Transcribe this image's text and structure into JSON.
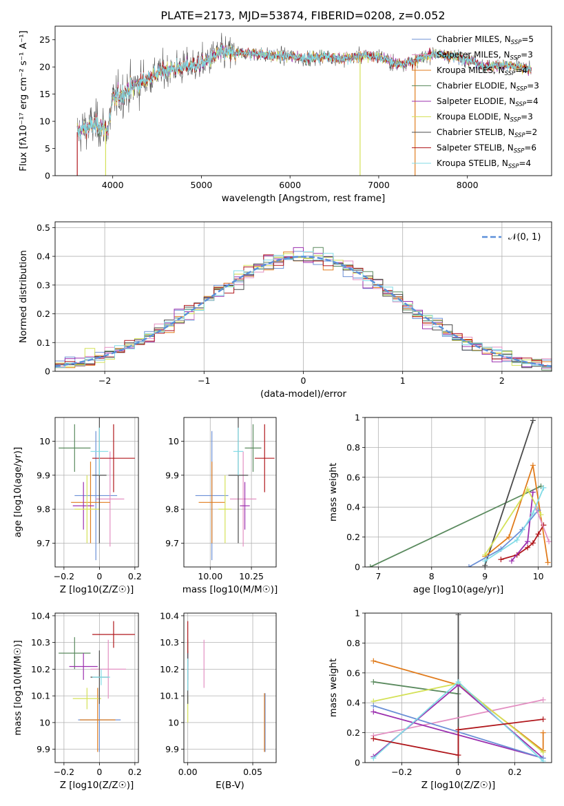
{
  "title": "PLATE=2173, MJD=53874, FIBERID=0208, z=0.052",
  "colors": {
    "Chabrier MILES": "#6a8fd6",
    "Salpeter MILES": "#e38fc2",
    "Kroupa MILES": "#e07b1c",
    "Chabrier ELODIE": "#5a8a5e",
    "Salpeter ELODIE": "#9b2fae",
    "Kroupa ELODIE": "#d4e157",
    "Chabrier STELIB": "#4a4a4a",
    "Salpeter STELIB": "#b0161b",
    "Kroupa STELIB": "#80dbe6"
  },
  "chart_data": [
    {
      "id": "spectrum",
      "type": "line",
      "title": "PLATE=2173, MJD=53874, FIBERID=0208, z=0.052",
      "xlabel": "wavelength [Angstrom, rest frame]",
      "ylabel": "Flux [fλ10⁻¹⁷ erg cm⁻² s⁻¹ A⁻¹]",
      "xlim": [
        3350,
        8950
      ],
      "ylim": [
        0,
        27.5
      ],
      "xticks": [
        4000,
        5000,
        6000,
        7000,
        8000
      ],
      "yticks": [
        0,
        5,
        10,
        15,
        20,
        25
      ],
      "grid": false,
      "legend_position": "top-right",
      "legend": [
        {
          "label": "Chabrier MILES, N",
          "sub": "SSP",
          "tail": "=5",
          "model": "Chabrier MILES"
        },
        {
          "label": "Salpeter MILES, N",
          "sub": "SSP",
          "tail": "=3",
          "model": "Salpeter MILES"
        },
        {
          "label": "Kroupa MILES, N",
          "sub": "SSP",
          "tail": "=4",
          "model": "Kroupa MILES"
        },
        {
          "label": "Chabrier ELODIE, N",
          "sub": "SSP",
          "tail": "=3",
          "model": "Chabrier ELODIE"
        },
        {
          "label": "Salpeter ELODIE, N",
          "sub": "SSP",
          "tail": "=4",
          "model": "Salpeter ELODIE"
        },
        {
          "label": "Kroupa ELODIE, N",
          "sub": "SSP",
          "tail": "=3",
          "model": "Kroupa ELODIE"
        },
        {
          "label": "Chabrier STELIB, N",
          "sub": "SSP",
          "tail": "=2",
          "model": "Chabrier STELIB"
        },
        {
          "label": "Salpeter STELIB, N",
          "sub": "SSP",
          "tail": "=6",
          "model": "Salpeter STELIB"
        },
        {
          "label": "Kroupa STELIB, N",
          "sub": "SSP",
          "tail": "=4",
          "model": "Kroupa STELIB"
        }
      ],
      "continuum": {
        "x": [
          3600,
          3800,
          3950,
          4000,
          4200,
          4400,
          4600,
          4800,
          5000,
          5200,
          5400,
          5600,
          5800,
          6000,
          6200,
          6400,
          6600,
          6800,
          7000,
          7200,
          7400,
          7600,
          7800,
          8000,
          8200,
          8400,
          8700
        ],
        "y": [
          8.0,
          9.5,
          8.5,
          14.0,
          16.0,
          18.0,
          19.5,
          20.0,
          20.5,
          22.5,
          22.5,
          22.5,
          22.0,
          22.0,
          21.5,
          22.0,
          21.5,
          22.0,
          22.0,
          20.5,
          21.0,
          22.5,
          22.0,
          21.5,
          20.0,
          20.5,
          19.5
        ]
      },
      "cutoffs": [
        {
          "model": "Salpeter STELIB",
          "x": 3600
        },
        {
          "model": "Kroupa ELODIE",
          "x": 3920
        },
        {
          "model": "Kroupa ELODIE",
          "x": 6790
        },
        {
          "model": "Kroupa MILES",
          "x": 7410
        }
      ]
    },
    {
      "id": "residuals",
      "type": "histogram",
      "xlabel": "(data-model)/error",
      "ylabel": "Normed distribution",
      "xlim": [
        -2.5,
        2.5
      ],
      "ylim": [
        0,
        0.52
      ],
      "xticks": [
        -2,
        -1,
        0,
        1,
        2
      ],
      "yticks": [
        0.0,
        0.1,
        0.2,
        0.3,
        0.4,
        0.5
      ],
      "grid": true,
      "legend_position": "top-right",
      "legend_label": "𝒩(0, 1)",
      "reference_curve": "standard normal",
      "bin_width": 0.1
    },
    {
      "id": "age_vs_z",
      "type": "errorbar",
      "xlabel": "Z [log10(Z/Z☉)]",
      "ylabel": "age [log10(age/yr)]",
      "xlim": [
        -0.25,
        0.22
      ],
      "ylim": [
        9.63,
        10.07
      ],
      "xticks": [
        -0.2,
        0.0,
        0.2
      ],
      "yticks": [
        9.7,
        9.8,
        9.9,
        10.0
      ],
      "grid": true,
      "points": [
        {
          "model": "Chabrier MILES",
          "x": -0.02,
          "xerr": 0.12,
          "y": 9.84,
          "yerr": 0.19
        },
        {
          "model": "Salpeter MILES",
          "x": 0.06,
          "xerr": 0.08,
          "y": 9.83,
          "yerr": 0.14
        },
        {
          "model": "Kroupa MILES",
          "x": -0.05,
          "xerr": 0.11,
          "y": 9.82,
          "yerr": 0.12
        },
        {
          "model": "Chabrier ELODIE",
          "x": -0.14,
          "xerr": 0.09,
          "y": 9.98,
          "yerr": 0.07
        },
        {
          "model": "Salpeter ELODIE",
          "x": -0.09,
          "xerr": 0.06,
          "y": 9.81,
          "yerr": 0.07
        },
        {
          "model": "Kroupa ELODIE",
          "x": -0.07,
          "xerr": 0.07,
          "y": 9.8,
          "yerr": 0.1
        },
        {
          "model": "Chabrier STELIB",
          "x": 0.0,
          "xerr": 0.04,
          "y": 9.9,
          "yerr": 0.2
        },
        {
          "model": "Salpeter STELIB",
          "x": 0.08,
          "xerr": 0.12,
          "y": 9.95,
          "yerr": 0.1
        },
        {
          "model": "Kroupa STELIB",
          "x": 0.0,
          "xerr": 0.05,
          "y": 9.97,
          "yerr": 0.07
        }
      ]
    },
    {
      "id": "age_vs_mass",
      "type": "errorbar",
      "xlabel": "mass [log10(M/M☉)]",
      "ylabel": "",
      "xlim": [
        9.84,
        10.4
      ],
      "ylim": [
        9.63,
        10.07
      ],
      "xticks": [
        10.0,
        10.25
      ],
      "xticklabels": [
        "10.00",
        "10.25"
      ],
      "yticks": [
        9.7,
        9.8,
        9.9,
        10.0
      ],
      "grid": true,
      "points": [
        {
          "model": "Chabrier MILES",
          "x": 10.01,
          "xerr": 0.1,
          "y": 9.84,
          "yerr": 0.19
        },
        {
          "model": "Salpeter MILES",
          "x": 10.2,
          "xerr": 0.08,
          "y": 9.83,
          "yerr": 0.14
        },
        {
          "model": "Kroupa MILES",
          "x": 10.01,
          "xerr": 0.08,
          "y": 9.82,
          "yerr": 0.12
        },
        {
          "model": "Chabrier ELODIE",
          "x": 10.26,
          "xerr": 0.05,
          "y": 9.98,
          "yerr": 0.07
        },
        {
          "model": "Salpeter ELODIE",
          "x": 10.21,
          "xerr": 0.03,
          "y": 9.81,
          "yerr": 0.07
        },
        {
          "model": "Kroupa ELODIE",
          "x": 10.09,
          "xerr": 0.04,
          "y": 9.8,
          "yerr": 0.1
        },
        {
          "model": "Chabrier STELIB",
          "x": 10.17,
          "xerr": 0.06,
          "y": 9.9,
          "yerr": 0.2
        },
        {
          "model": "Salpeter STELIB",
          "x": 10.33,
          "xerr": 0.06,
          "y": 9.95,
          "yerr": 0.1
        },
        {
          "model": "Kroupa STELIB",
          "x": 10.17,
          "xerr": 0.03,
          "y": 9.97,
          "yerr": 0.07
        }
      ]
    },
    {
      "id": "mass_weight_vs_age",
      "type": "line",
      "xlabel": "age [log10(age/yr)]",
      "ylabel": "mass weight",
      "xlim": [
        6.75,
        10.25
      ],
      "ylim": [
        0,
        1.0
      ],
      "xticks": [
        7,
        8,
        9,
        10
      ],
      "yticks": [
        0.0,
        0.2,
        0.4,
        0.6,
        0.8,
        1.0
      ],
      "grid": true,
      "series": [
        {
          "model": "Chabrier ELODIE",
          "x": [
            6.85,
            10.05
          ],
          "y": [
            0.0,
            0.54
          ]
        },
        {
          "model": "Chabrier STELIB",
          "x": [
            9.0,
            9.9
          ],
          "y": [
            0.01,
            0.98
          ]
        },
        {
          "model": "Kroupa MILES",
          "x": [
            9.0,
            9.45,
            9.9,
            10.18
          ],
          "y": [
            0.07,
            0.2,
            0.68,
            0.03
          ]
        },
        {
          "model": "Salpeter STELIB",
          "x": [
            9.3,
            9.6,
            9.8,
            9.9,
            10.0,
            10.1
          ],
          "y": [
            0.05,
            0.08,
            0.13,
            0.16,
            0.22,
            0.28
          ]
        },
        {
          "model": "Salpeter ELODIE",
          "x": [
            9.5,
            9.8,
            9.9
          ],
          "y": [
            0.04,
            0.17,
            0.5
          ]
        },
        {
          "model": "Kroupa ELODIE",
          "x": [
            9.0,
            9.8,
            10.05
          ],
          "y": [
            0.08,
            0.52,
            0.35
          ]
        },
        {
          "model": "Chabrier MILES",
          "x": [
            8.7,
            9.3,
            9.7,
            10.0
          ],
          "y": [
            0.0,
            0.12,
            0.25,
            0.38
          ]
        },
        {
          "model": "Salpeter MILES",
          "x": [
            9.95,
            10.2
          ],
          "y": [
            0.4,
            0.17
          ]
        },
        {
          "model": "Kroupa STELIB",
          "x": [
            9.0,
            9.6,
            9.9,
            10.1
          ],
          "y": [
            0.04,
            0.18,
            0.36,
            0.53
          ]
        }
      ]
    },
    {
      "id": "mass_vs_z",
      "type": "errorbar",
      "xlabel": "Z [log10(Z/Z☉)]",
      "ylabel": "mass [log10(M/M☉)]",
      "xlim": [
        -0.25,
        0.22
      ],
      "ylim": [
        9.85,
        10.41
      ],
      "xticks": [
        -0.2,
        0.0,
        0.2
      ],
      "yticks": [
        9.9,
        10.0,
        10.1,
        10.2,
        10.3,
        10.4
      ],
      "grid": true,
      "points": [
        {
          "model": "Chabrier MILES",
          "x": 0.0,
          "xerr": 0.12,
          "y": 10.01,
          "yerr": 0.12
        },
        {
          "model": "Salpeter MILES",
          "x": 0.05,
          "xerr": 0.1,
          "y": 10.2,
          "yerr": 0.11
        },
        {
          "model": "Kroupa MILES",
          "x": -0.01,
          "xerr": 0.1,
          "y": 10.01,
          "yerr": 0.12
        },
        {
          "model": "Chabrier ELODIE",
          "x": -0.14,
          "xerr": 0.09,
          "y": 10.26,
          "yerr": 0.06
        },
        {
          "model": "Salpeter ELODIE",
          "x": -0.09,
          "xerr": 0.08,
          "y": 10.21,
          "yerr": 0.05
        },
        {
          "model": "Kroupa ELODIE",
          "x": -0.07,
          "xerr": 0.08,
          "y": 10.09,
          "yerr": 0.04
        },
        {
          "model": "Chabrier STELIB",
          "x": 0.0,
          "xerr": 0.05,
          "y": 10.17,
          "yerr": 0.1
        },
        {
          "model": "Salpeter STELIB",
          "x": 0.08,
          "xerr": 0.12,
          "y": 10.33,
          "yerr": 0.05
        },
        {
          "model": "Kroupa STELIB",
          "x": 0.01,
          "xerr": 0.05,
          "y": 10.17,
          "yerr": 0.03
        }
      ]
    },
    {
      "id": "mass_vs_ebv",
      "type": "errorbar",
      "xlabel": "E(B-V)",
      "ylabel": "",
      "xlim": [
        -0.003,
        0.068
      ],
      "ylim": [
        9.85,
        10.41
      ],
      "xticks": [
        0.0,
        0.05
      ],
      "xticklabels": [
        "0.00",
        "0.05"
      ],
      "yticks": [
        9.9,
        10.0,
        10.1,
        10.2,
        10.3,
        10.4
      ],
      "grid": true,
      "points": [
        {
          "model": "Chabrier MILES",
          "x": 0.0595,
          "xerr": 0,
          "y": 10.0,
          "yerr": 0.11
        },
        {
          "model": "Salpeter MILES",
          "x": 0.0125,
          "xerr": 0,
          "y": 10.22,
          "yerr": 0.09
        },
        {
          "model": "Kroupa MILES",
          "x": 0.059,
          "xerr": 0,
          "y": 10.0,
          "yerr": 0.11
        },
        {
          "model": "Chabrier ELODIE",
          "x": 0.0,
          "xerr": 0,
          "y": 10.26,
          "yerr": 0.05
        },
        {
          "model": "Salpeter ELODIE",
          "x": 0.0,
          "xerr": 0,
          "y": 10.21,
          "yerr": 0.05
        },
        {
          "model": "Kroupa ELODIE",
          "x": 0.0,
          "xerr": 0,
          "y": 10.05,
          "yerr": 0.05
        },
        {
          "model": "Chabrier STELIB",
          "x": 0.0,
          "xerr": 0,
          "y": 10.17,
          "yerr": 0.1
        },
        {
          "model": "Salpeter STELIB",
          "x": 0.0,
          "xerr": 0,
          "y": 10.32,
          "yerr": 0.06
        },
        {
          "model": "Kroupa STELIB",
          "x": 0.0,
          "xerr": 0,
          "y": 10.18,
          "yerr": 0.06
        }
      ]
    },
    {
      "id": "mass_weight_vs_z",
      "type": "line",
      "xlabel": "Z [log10(Z/Z☉)]",
      "ylabel": "mass weight",
      "xlim": [
        -0.33,
        0.33
      ],
      "ylim": [
        0,
        1.0
      ],
      "xticks": [
        -0.2,
        0.0,
        0.2
      ],
      "yticks": [
        0.0,
        0.2,
        0.4,
        0.6,
        0.8,
        1.0
      ],
      "grid": true,
      "series": [
        {
          "model": "Kroupa MILES",
          "x": [
            -0.3,
            0.0,
            0.3,
            0.3
          ],
          "y": [
            0.68,
            0.52,
            0.08,
            0.2
          ]
        },
        {
          "model": "Chabrier ELODIE",
          "x": [
            -0.3,
            0.0
          ],
          "y": [
            0.54,
            0.46
          ]
        },
        {
          "model": "Chabrier STELIB",
          "x": [
            0.0,
            0.0
          ],
          "y": [
            0.0,
            0.99
          ]
        },
        {
          "model": "Salpeter MILES",
          "x": [
            -0.3,
            0.3
          ],
          "y": [
            0.18,
            0.42
          ]
        },
        {
          "model": "Kroupa ELODIE",
          "x": [
            -0.3,
            0.0,
            0.3
          ],
          "y": [
            0.41,
            0.53,
            0.07
          ]
        },
        {
          "model": "Salpeter ELODIE",
          "x": [
            -0.3,
            0.0,
            0.3,
            -0.3
          ],
          "y": [
            0.04,
            0.52,
            0.03,
            0.34
          ]
        },
        {
          "model": "Chabrier MILES",
          "x": [
            -0.3,
            0.3
          ],
          "y": [
            0.38,
            0.03
          ]
        },
        {
          "model": "Kroupa STELIB",
          "x": [
            -0.3,
            0.0,
            0.3
          ],
          "y": [
            0.03,
            0.54,
            0.01
          ]
        },
        {
          "model": "Salpeter STELIB",
          "x": [
            -0.3,
            0.0,
            0.0,
            0.3
          ],
          "y": [
            0.16,
            0.05,
            0.22,
            0.29
          ]
        }
      ]
    }
  ]
}
